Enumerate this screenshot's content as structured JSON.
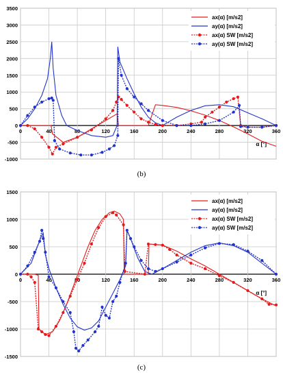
{
  "chart_data": [
    {
      "type": "line",
      "caption": "(b)",
      "xlabel": "α [°]",
      "xlim": [
        0,
        360
      ],
      "ylim": [
        -1000,
        3500
      ],
      "x_ticks": [
        0,
        40,
        80,
        120,
        160,
        200,
        240,
        280,
        320,
        360
      ],
      "y_ticks": [
        -1000,
        -500,
        0,
        500,
        1000,
        1500,
        2000,
        2500,
        3000,
        3500
      ],
      "grid": true,
      "legend_position": "top-right",
      "series": [
        {
          "name": "ax(α) [m/s2]",
          "color": "#e41a1c",
          "style": "line",
          "points": [
            [
              0,
              0
            ],
            [
              43,
              0
            ],
            [
              45,
              -250
            ],
            [
              60,
              -500
            ],
            [
              80,
              -350
            ],
            [
              100,
              -100
            ],
            [
              120,
              150
            ],
            [
              136,
              350
            ],
            [
              138,
              0
            ],
            [
              180,
              0
            ],
            [
              190,
              620
            ],
            [
              200,
              600
            ],
            [
              220,
              540
            ],
            [
              240,
              440
            ],
            [
              260,
              310
            ],
            [
              280,
              150
            ],
            [
              300,
              -40
            ],
            [
              320,
              -250
            ],
            [
              340,
              -470
            ],
            [
              360,
              -620
            ]
          ]
        },
        {
          "name": "ay(α)  [m/s2]",
          "color": "#2233cc",
          "style": "line",
          "points": [
            [
              0,
              0
            ],
            [
              10,
              200
            ],
            [
              20,
              500
            ],
            [
              30,
              900
            ],
            [
              38,
              1400
            ],
            [
              42,
              2000
            ],
            [
              44,
              2500
            ],
            [
              46,
              1700
            ],
            [
              50,
              900
            ],
            [
              58,
              300
            ],
            [
              65,
              0
            ],
            [
              80,
              -150
            ],
            [
              100,
              -300
            ],
            [
              120,
              -350
            ],
            [
              130,
              -300
            ],
            [
              136,
              0
            ],
            [
              137,
              2350
            ],
            [
              140,
              1900
            ],
            [
              150,
              1400
            ],
            [
              160,
              950
            ],
            [
              170,
              550
            ],
            [
              180,
              250
            ],
            [
              190,
              80
            ],
            [
              200,
              0
            ],
            [
              220,
              250
            ],
            [
              240,
              450
            ],
            [
              260,
              590
            ],
            [
              280,
              620
            ],
            [
              300,
              560
            ],
            [
              320,
              380
            ],
            [
              340,
              200
            ],
            [
              360,
              0
            ]
          ]
        },
        {
          "name": "ax(α) SW [m/s2]",
          "color": "#e41a1c",
          "style": "dashed-markers",
          "points": [
            [
              0,
              0
            ],
            [
              10,
              0
            ],
            [
              20,
              -100
            ],
            [
              30,
              -350
            ],
            [
              40,
              -650
            ],
            [
              45,
              -850
            ],
            [
              50,
              -650
            ],
            [
              60,
              -550
            ],
            [
              80,
              -350
            ],
            [
              100,
              -130
            ],
            [
              120,
              200
            ],
            [
              130,
              450
            ],
            [
              135,
              700
            ],
            [
              138,
              850
            ],
            [
              142,
              780
            ],
            [
              150,
              600
            ],
            [
              160,
              400
            ],
            [
              170,
              200
            ],
            [
              180,
              100
            ],
            [
              190,
              30
            ],
            [
              200,
              0
            ],
            [
              220,
              0
            ],
            [
              240,
              50
            ],
            [
              255,
              100
            ],
            [
              260,
              250
            ],
            [
              270,
              400
            ],
            [
              280,
              550
            ],
            [
              290,
              700
            ],
            [
              300,
              800
            ],
            [
              306,
              850
            ],
            [
              310,
              0
            ],
            [
              320,
              -50
            ],
            [
              340,
              -50
            ],
            [
              360,
              0
            ]
          ]
        },
        {
          "name": "ay(α) SW [m/s2]",
          "color": "#2233cc",
          "style": "dashed-markers",
          "points": [
            [
              0,
              0
            ],
            [
              10,
              300
            ],
            [
              20,
              550
            ],
            [
              30,
              700
            ],
            [
              40,
              800
            ],
            [
              44,
              820
            ],
            [
              46,
              750
            ],
            [
              48,
              -450
            ],
            [
              55,
              -700
            ],
            [
              70,
              -820
            ],
            [
              85,
              -880
            ],
            [
              100,
              -880
            ],
            [
              115,
              -800
            ],
            [
              125,
              -700
            ],
            [
              132,
              -600
            ],
            [
              137,
              -300
            ],
            [
              138,
              2000
            ],
            [
              142,
              1500
            ],
            [
              150,
              1100
            ],
            [
              160,
              850
            ],
            [
              170,
              650
            ],
            [
              180,
              450
            ],
            [
              200,
              150
            ],
            [
              220,
              0
            ],
            [
              240,
              0
            ],
            [
              260,
              50
            ],
            [
              280,
              150
            ],
            [
              300,
              400
            ],
            [
              308,
              600
            ],
            [
              310,
              -30
            ],
            [
              320,
              -50
            ],
            [
              340,
              -50
            ],
            [
              360,
              0
            ]
          ]
        }
      ]
    },
    {
      "type": "line",
      "caption": "(c)",
      "xlabel": "α [°]",
      "xlim": [
        0,
        360
      ],
      "ylim": [
        -1500,
        1500
      ],
      "x_ticks": [
        0,
        40,
        80,
        120,
        160,
        200,
        240,
        280,
        320,
        360
      ],
      "y_ticks": [
        -1500,
        -1000,
        -500,
        0,
        500,
        1000,
        1500
      ],
      "grid": true,
      "legend_position": "top-right",
      "series": [
        {
          "name": "ax(α) [m/s2]",
          "color": "#e41a1c",
          "style": "line",
          "points": [
            [
              0,
              0
            ],
            [
              20,
              0
            ],
            [
              25,
              -20
            ],
            [
              26,
              -1000
            ],
            [
              35,
              -1100
            ],
            [
              45,
              -1050
            ],
            [
              55,
              -850
            ],
            [
              65,
              -550
            ],
            [
              75,
              -200
            ],
            [
              85,
              150
            ],
            [
              95,
              500
            ],
            [
              105,
              800
            ],
            [
              115,
              1000
            ],
            [
              125,
              1120
            ],
            [
              132,
              1150
            ],
            [
              140,
              1100
            ],
            [
              145,
              1000
            ],
            [
              146,
              0
            ],
            [
              180,
              0
            ],
            [
              181,
              550
            ],
            [
              200,
              530
            ],
            [
              220,
              420
            ],
            [
              240,
              280
            ],
            [
              260,
              150
            ],
            [
              280,
              0
            ],
            [
              300,
              -150
            ],
            [
              320,
              -300
            ],
            [
              340,
              -450
            ],
            [
              360,
              -580
            ]
          ]
        },
        {
          "name": "ay(α)  [m/s2]",
          "color": "#2233cc",
          "style": "line",
          "points": [
            [
              0,
              0
            ],
            [
              15,
              200
            ],
            [
              28,
              650
            ],
            [
              32,
              750
            ],
            [
              35,
              350
            ],
            [
              40,
              100
            ],
            [
              50,
              -250
            ],
            [
              60,
              -550
            ],
            [
              70,
              -800
            ],
            [
              80,
              -960
            ],
            [
              90,
              -1020
            ],
            [
              100,
              -980
            ],
            [
              110,
              -850
            ],
            [
              120,
              -600
            ],
            [
              130,
              -350
            ],
            [
              140,
              -100
            ],
            [
              148,
              150
            ],
            [
              150,
              800
            ],
            [
              155,
              650
            ],
            [
              165,
              300
            ],
            [
              175,
              50
            ],
            [
              185,
              0
            ],
            [
              200,
              100
            ],
            [
              220,
              250
            ],
            [
              240,
              400
            ],
            [
              260,
              520
            ],
            [
              280,
              570
            ],
            [
              300,
              520
            ],
            [
              320,
              400
            ],
            [
              340,
              200
            ],
            [
              360,
              0
            ]
          ]
        },
        {
          "name": "ax(α) SW [m/s2]",
          "color": "#e41a1c",
          "style": "dashed-markers",
          "points": [
            [
              0,
              0
            ],
            [
              10,
              0
            ],
            [
              15,
              -50
            ],
            [
              20,
              -150
            ],
            [
              25,
              -1000
            ],
            [
              30,
              -1050
            ],
            [
              35,
              -1100
            ],
            [
              40,
              -1120
            ],
            [
              50,
              -950
            ],
            [
              60,
              -700
            ],
            [
              70,
              -400
            ],
            [
              80,
              -100
            ],
            [
              90,
              200
            ],
            [
              100,
              550
            ],
            [
              110,
              850
            ],
            [
              120,
              1050
            ],
            [
              130,
              1120
            ],
            [
              135,
              1080
            ],
            [
              145,
              900
            ],
            [
              147,
              50
            ],
            [
              175,
              0
            ],
            [
              180,
              550
            ],
            [
              190,
              540
            ],
            [
              200,
              530
            ],
            [
              210,
              450
            ],
            [
              220,
              350
            ],
            [
              240,
              200
            ],
            [
              260,
              100
            ],
            [
              280,
              -30
            ],
            [
              300,
              -150
            ],
            [
              320,
              -300
            ],
            [
              340,
              -450
            ],
            [
              350,
              -550
            ],
            [
              360,
              -560
            ]
          ]
        },
        {
          "name": "ay(α) SW [m/s2]",
          "color": "#2233cc",
          "style": "dashed-markers",
          "points": [
            [
              0,
              0
            ],
            [
              10,
              150
            ],
            [
              20,
              400
            ],
            [
              27,
              600
            ],
            [
              30,
              800
            ],
            [
              32,
              650
            ],
            [
              35,
              400
            ],
            [
              40,
              -50
            ],
            [
              50,
              -250
            ],
            [
              60,
              -500
            ],
            [
              70,
              -700
            ],
            [
              75,
              -1050
            ],
            [
              78,
              -1350
            ],
            [
              82,
              -1400
            ],
            [
              88,
              -1300
            ],
            [
              95,
              -1200
            ],
            [
              105,
              -1050
            ],
            [
              110,
              -950
            ],
            [
              115,
              -600
            ],
            [
              120,
              -750
            ],
            [
              125,
              -800
            ],
            [
              130,
              -500
            ],
            [
              135,
              -400
            ],
            [
              140,
              -150
            ],
            [
              148,
              200
            ],
            [
              150,
              800
            ],
            [
              155,
              650
            ],
            [
              160,
              500
            ],
            [
              170,
              250
            ],
            [
              180,
              100
            ],
            [
              190,
              50
            ],
            [
              200,
              100
            ],
            [
              220,
              220
            ],
            [
              240,
              350
            ],
            [
              260,
              480
            ],
            [
              280,
              560
            ],
            [
              300,
              540
            ],
            [
              320,
              420
            ],
            [
              340,
              250
            ],
            [
              360,
              0
            ]
          ]
        }
      ]
    }
  ]
}
